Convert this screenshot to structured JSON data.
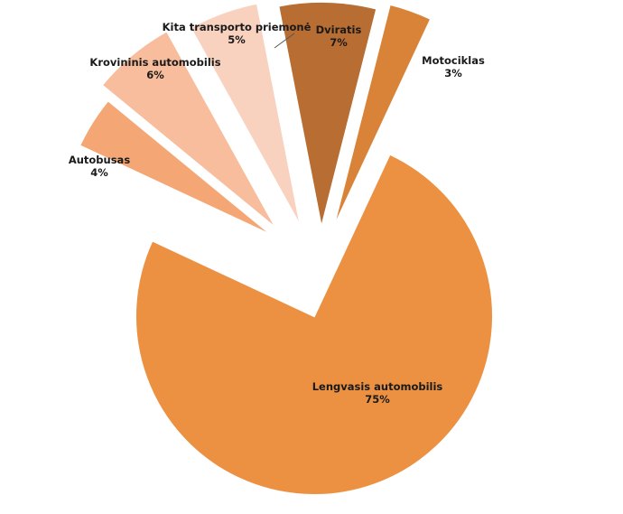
{
  "chart_data": {
    "type": "pie",
    "title": "",
    "exploded": true,
    "slices": [
      {
        "label": "Lengvasis automobilis",
        "value": 75,
        "display": "75%",
        "color": "#ec9142"
      },
      {
        "label": "Autobusas",
        "value": 4,
        "display": "4%",
        "color": "#f4a775"
      },
      {
        "label": "Krovininis automobilis",
        "value": 6,
        "display": "6%",
        "color": "#f7bd9c"
      },
      {
        "label": "Kita transporto priemonė",
        "value": 5,
        "display": "5%",
        "color": "#f9d2bf"
      },
      {
        "label": "Dviratis",
        "value": 7,
        "display": "7%",
        "color": "#b86d32"
      },
      {
        "label": "Motociklas",
        "value": 3,
        "display": "3%",
        "color": "#d98339"
      }
    ]
  }
}
